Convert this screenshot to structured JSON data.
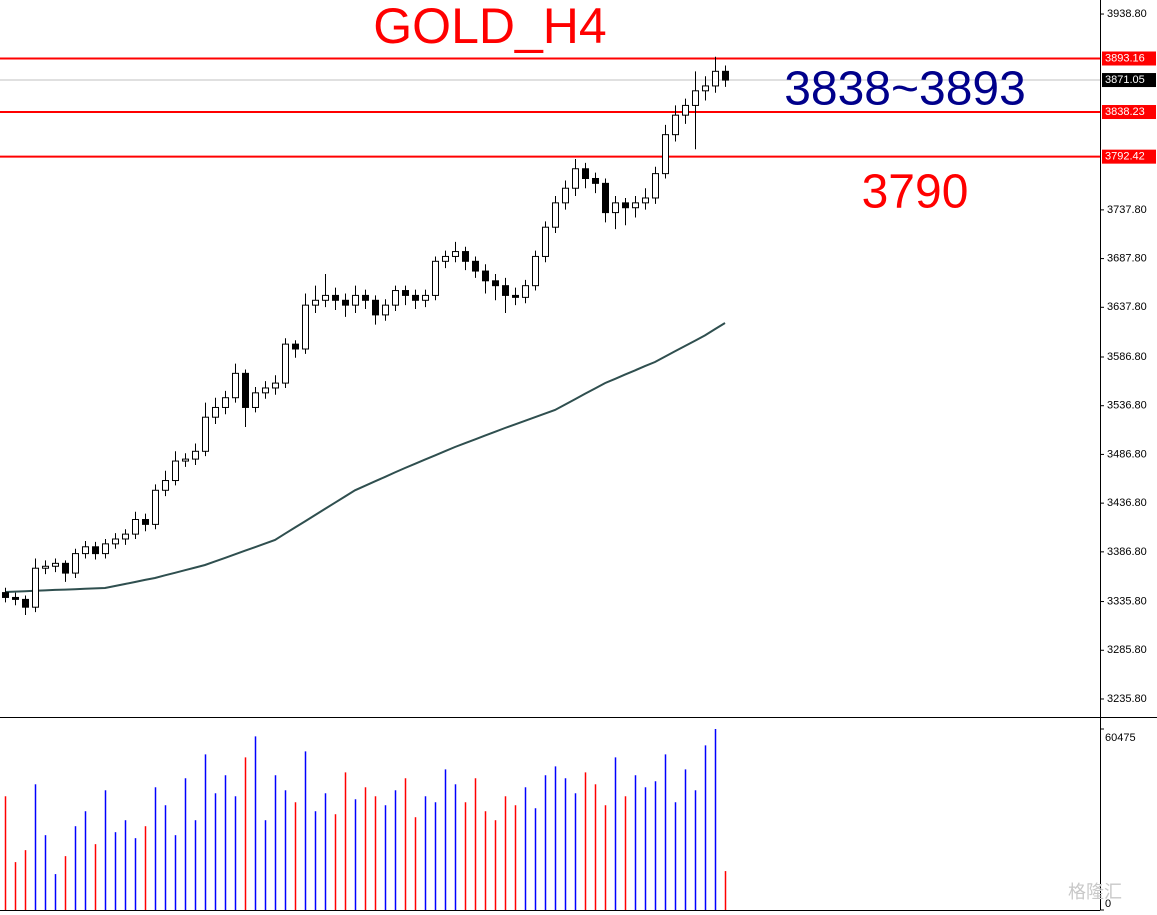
{
  "chart_data": {
    "type": "candlestick",
    "title": "GOLD_H4",
    "annotations": [
      {
        "text": "3838~3893",
        "color": "#00008b"
      },
      {
        "text": "3790",
        "color": "#ff0000"
      }
    ],
    "title_color": "#ff0000",
    "open": [
      3345,
      3340,
      3338,
      3330,
      3370,
      3372,
      3375,
      3365,
      3385,
      3392,
      3385,
      3395,
      3400,
      3405,
      3420,
      3415,
      3450,
      3460,
      3480,
      3482,
      3490,
      3525,
      3535,
      3545,
      3570,
      3535,
      3550,
      3555,
      3560,
      3600,
      3595,
      3640,
      3645,
      3650,
      3645,
      3640,
      3650,
      3645,
      3630,
      3640,
      3655,
      3650,
      3645,
      3650,
      3685,
      3690,
      3695,
      3685,
      3675,
      3665,
      3660,
      3650,
      3648,
      3660,
      3690,
      3720,
      3745,
      3760,
      3780,
      3770,
      3765,
      3735,
      3745,
      3740,
      3745,
      3750,
      3775,
      3815,
      3835,
      3845,
      3860,
      3865,
      3880
    ],
    "high": [
      3350,
      3345,
      3342,
      3380,
      3378,
      3380,
      3378,
      3390,
      3398,
      3397,
      3400,
      3406,
      3410,
      3428,
      3426,
      3456,
      3470,
      3490,
      3488,
      3498,
      3540,
      3545,
      3552,
      3580,
      3574,
      3556,
      3562,
      3568,
      3606,
      3604,
      3652,
      3660,
      3672,
      3658,
      3652,
      3660,
      3656,
      3650,
      3646,
      3660,
      3660,
      3656,
      3656,
      3690,
      3696,
      3705,
      3700,
      3690,
      3682,
      3672,
      3668,
      3658,
      3666,
      3696,
      3726,
      3752,
      3768,
      3790,
      3786,
      3776,
      3770,
      3752,
      3750,
      3752,
      3760,
      3782,
      3825,
      3845,
      3852,
      3880,
      3875,
      3895,
      3886
    ],
    "low": [
      3335,
      3332,
      3322,
      3325,
      3364,
      3366,
      3356,
      3360,
      3380,
      3379,
      3380,
      3390,
      3394,
      3400,
      3408,
      3410,
      3444,
      3455,
      3474,
      3476,
      3485,
      3518,
      3528,
      3540,
      3515,
      3530,
      3544,
      3548,
      3555,
      3586,
      3590,
      3632,
      3638,
      3635,
      3628,
      3632,
      3636,
      3620,
      3624,
      3634,
      3640,
      3636,
      3638,
      3645,
      3678,
      3684,
      3676,
      3668,
      3652,
      3645,
      3632,
      3640,
      3642,
      3655,
      3684,
      3714,
      3738,
      3752,
      3760,
      3755,
      3725,
      3718,
      3722,
      3730,
      3738,
      3744,
      3770,
      3808,
      3826,
      3800,
      3850,
      3858,
      3864
    ],
    "close": [
      3340,
      3338,
      3330,
      3370,
      3372,
      3375,
      3365,
      3385,
      3392,
      3385,
      3395,
      3400,
      3405,
      3420,
      3415,
      3450,
      3460,
      3480,
      3482,
      3490,
      3525,
      3535,
      3545,
      3570,
      3535,
      3550,
      3555,
      3560,
      3600,
      3595,
      3640,
      3645,
      3650,
      3645,
      3640,
      3650,
      3645,
      3630,
      3640,
      3655,
      3650,
      3645,
      3650,
      3685,
      3690,
      3695,
      3685,
      3675,
      3665,
      3660,
      3650,
      3648,
      3660,
      3690,
      3720,
      3745,
      3760,
      3780,
      3770,
      3765,
      3735,
      3745,
      3740,
      3745,
      3750,
      3775,
      3815,
      3835,
      3845,
      3860,
      3865,
      3880,
      3871
    ],
    "up_color": "#ffffff",
    "down_color": "#000000",
    "wick_color": "#000000",
    "moving_average": {
      "color": "#2f4f4f",
      "values": [
        3345.6,
        3346,
        3346.4,
        3346.8,
        3347.2,
        3347.7,
        3348.1,
        3348.5,
        3348.9,
        3349.3,
        3349.7,
        3351.8,
        3353.8,
        3355.9,
        3358,
        3360,
        3362.7,
        3365.3,
        3368,
        3370.6,
        3373.3,
        3377,
        3380.6,
        3384.3,
        3388,
        3391.6,
        3395.3,
        3399,
        3405.4,
        3411.8,
        3418.1,
        3424.5,
        3430.9,
        3437.3,
        3443.6,
        3450,
        3454.6,
        3459.2,
        3463.7,
        3468.3,
        3472.9,
        3477.2,
        3481.5,
        3485.8,
        3490.1,
        3494.4,
        3498.3,
        3502.2,
        3506.1,
        3510,
        3513.9,
        3517.6,
        3521.3,
        3525,
        3528.7,
        3532.4,
        3537.9,
        3543.4,
        3549,
        3554.5,
        3560,
        3564.3,
        3568.7,
        3573,
        3577.4,
        3581.7,
        3587.2,
        3592.6,
        3598.1,
        3603.5,
        3609,
        3615.4,
        3621.7
      ]
    },
    "ylim": [
      3217.3,
      3953.2
    ],
    "yticks": [
      {
        "value": 3938.8,
        "label": "3938.80"
      },
      {
        "value": 3737.8,
        "label": "3737.80"
      },
      {
        "value": 3687.8,
        "label": "3687.80"
      },
      {
        "value": 3637.8,
        "label": "3637.80"
      },
      {
        "value": 3586.8,
        "label": "3586.80"
      },
      {
        "value": 3536.8,
        "label": "3536.80"
      },
      {
        "value": 3486.8,
        "label": "3486.80"
      },
      {
        "value": 3436.8,
        "label": "3436.80"
      },
      {
        "value": 3386.8,
        "label": "3386.80"
      },
      {
        "value": 3335.8,
        "label": "3335.80"
      },
      {
        "value": 3285.8,
        "label": "3285.80"
      },
      {
        "value": 3235.8,
        "label": "3235.80"
      }
    ],
    "levels": [
      {
        "value": 3893.16,
        "color": "#ff0000"
      },
      {
        "value": 3838.23,
        "color": "#ff0000"
      },
      {
        "value": 3792.42,
        "color": "#ff0000"
      }
    ],
    "current_price": 3871.05,
    "volume": {
      "values": [
        38000,
        16000,
        20000,
        42000,
        25000,
        12000,
        18000,
        28000,
        33000,
        22000,
        40000,
        26000,
        30000,
        24000,
        28000,
        41000,
        35000,
        25000,
        44000,
        30000,
        52000,
        39000,
        45000,
        38000,
        51000,
        58000,
        30000,
        45000,
        40000,
        36000,
        53000,
        33000,
        39000,
        32000,
        46000,
        37000,
        41000,
        38000,
        35000,
        40000,
        44000,
        31000,
        38000,
        36000,
        47000,
        42000,
        36000,
        44000,
        33000,
        30000,
        38000,
        35000,
        41000,
        34000,
        45000,
        48000,
        44000,
        39000,
        46000,
        42000,
        35000,
        51000,
        38000,
        45000,
        41000,
        43000,
        52000,
        36000,
        47000,
        40000,
        55000,
        60475,
        13000
      ],
      "up_color": "#0000ff",
      "down_color": "#ff0000",
      "ylim": [
        0,
        63480
      ],
      "yticks": [
        0,
        60475
      ]
    },
    "watermark": "格隆汇"
  }
}
